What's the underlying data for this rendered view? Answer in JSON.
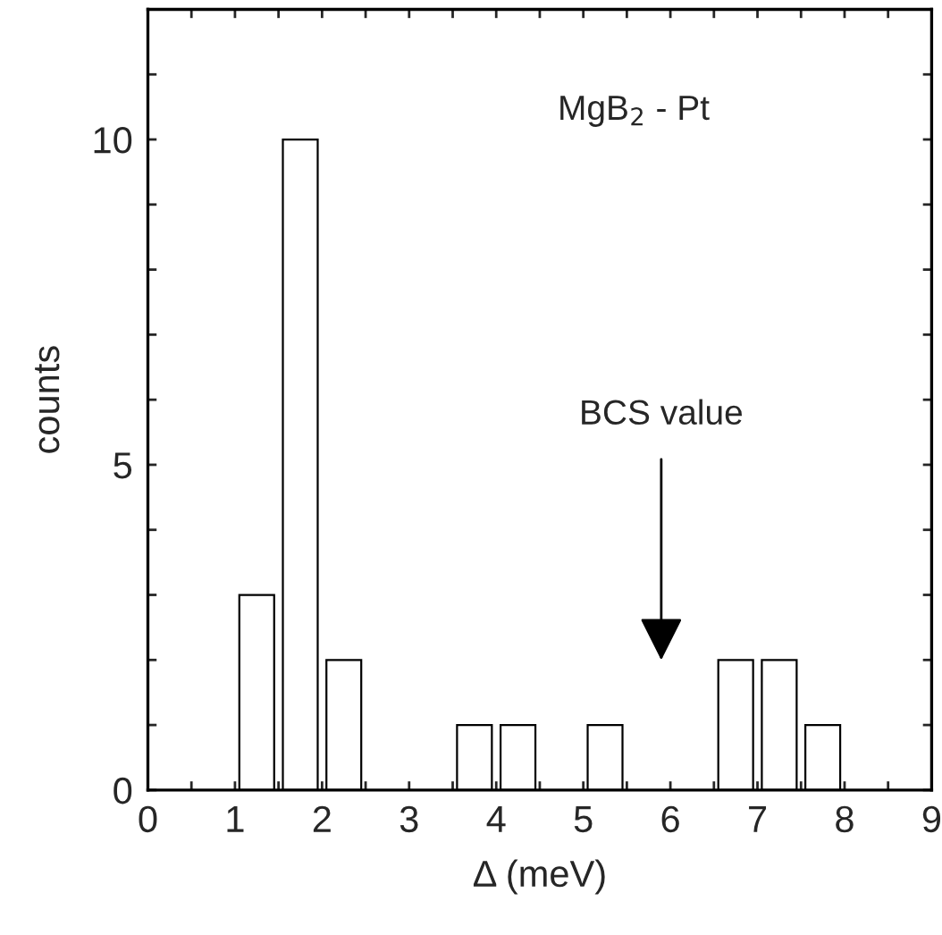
{
  "chart_data": {
    "type": "histogram",
    "xlabel": "Δ (meV)",
    "ylabel": "counts",
    "bins": [
      1.0,
      1.5,
      2.0,
      2.5,
      3.0,
      3.5,
      4.0,
      4.5,
      5.0,
      5.5,
      6.0,
      6.5,
      7.0,
      7.5,
      8.0
    ],
    "values": [
      3,
      10,
      2,
      0,
      0,
      1,
      1,
      0,
      1,
      0,
      0,
      2,
      2,
      1
    ],
    "color": "#ffffff",
    "xlim": [
      0,
      9
    ],
    "ylim": [
      0,
      12
    ],
    "xticks": [
      0,
      {
        "value": 0.5,
        "label": null
      },
      1,
      {
        "value": 1.5,
        "label": null
      },
      2,
      {
        "value": 2.5,
        "label": null
      },
      3,
      {
        "value": 3.5,
        "label": null
      },
      4,
      {
        "value": 4.5,
        "label": null
      },
      5,
      {
        "value": 5.5,
        "label": null
      },
      6,
      {
        "value": 6.5,
        "label": null
      },
      7,
      {
        "value": 7.5,
        "label": null
      },
      8,
      {
        "value": 8.5,
        "label": null
      },
      9
    ],
    "yticks": [
      0,
      {
        "value": 1,
        "label": null
      },
      {
        "value": 2,
        "label": null
      },
      {
        "value": 3,
        "label": null
      },
      {
        "value": 4,
        "label": null
      },
      5,
      {
        "value": 6,
        "label": null
      },
      {
        "value": 7,
        "label": null
      },
      {
        "value": 8,
        "label": null
      },
      {
        "value": 9,
        "label": null
      },
      10,
      {
        "value": 11,
        "label": null
      },
      {
        "value": 12,
        "label": null
      }
    ],
    "annotations": [
      "MgB$_{2}$ - Pt",
      "BCS value"
    ],
    "grid": false,
    "legend": false
  }
}
